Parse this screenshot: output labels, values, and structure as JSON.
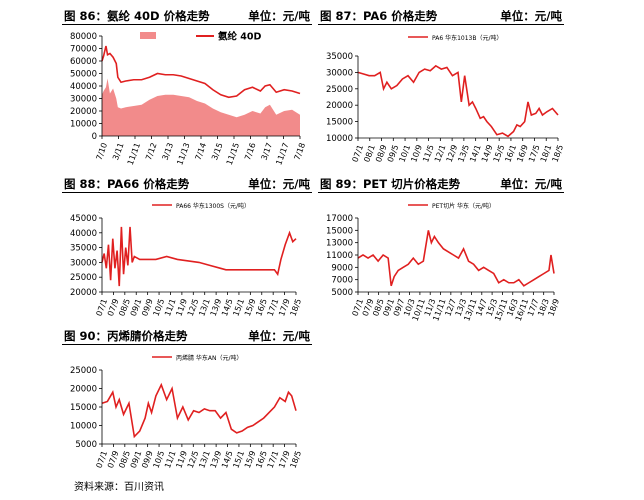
{
  "source": "资料来源：百川资讯",
  "colors": {
    "red": "#e02020",
    "pink": "#f28b8b",
    "axis": "#000000"
  },
  "chart_data": [
    {
      "id": "c86",
      "type": "area",
      "title": "图 86：氨纶 40D 价格走势",
      "unit": "单位：元/吨",
      "ylim": [
        0,
        80000
      ],
      "yticks": [
        0,
        10000,
        20000,
        30000,
        40000,
        50000,
        60000,
        70000,
        80000
      ],
      "xticks": [
        "7/10",
        "3/11",
        "11/11",
        "7/12",
        "3/13",
        "11/13",
        "7/14",
        "3/15",
        "11/15",
        "7/16",
        "3/17",
        "11/17",
        "7/18"
      ],
      "legend": [
        "价差",
        "氨纶 40D"
      ],
      "x": [
        0,
        1,
        2,
        3,
        4,
        5,
        6,
        7,
        8,
        9,
        10,
        11,
        12
      ],
      "series": [
        {
          "name": "价差",
          "kind": "area",
          "x": [
            0,
            0.1,
            0.25,
            0.35,
            0.5,
            0.7,
            0.9,
            1,
            1.2,
            1.5,
            2,
            2.5,
            3,
            3.5,
            4,
            4.5,
            5,
            5.5,
            6,
            6.5,
            7,
            7.5,
            8,
            8.5,
            9,
            9.5,
            10,
            10.3,
            10.6,
            11,
            11.5,
            12,
            12.5
          ],
          "values": [
            33000,
            36000,
            39000,
            46000,
            34000,
            38000,
            30000,
            23000,
            22000,
            23000,
            24000,
            25000,
            29000,
            32000,
            33000,
            33000,
            32000,
            31000,
            28000,
            26000,
            22000,
            19000,
            17000,
            15000,
            17000,
            20000,
            18000,
            23000,
            25000,
            17000,
            20000,
            21000,
            17000
          ]
        },
        {
          "name": "氨纶 40D",
          "kind": "line",
          "x": [
            0,
            0.1,
            0.25,
            0.35,
            0.5,
            0.7,
            0.9,
            1,
            1.2,
            1.5,
            2,
            2.5,
            3,
            3.5,
            4,
            4.5,
            5,
            5.5,
            6,
            6.5,
            7,
            7.5,
            8,
            8.5,
            9,
            9.5,
            10,
            10.3,
            10.6,
            11,
            11.5,
            12,
            12.5
          ],
          "values": [
            60000,
            64000,
            72000,
            65000,
            66000,
            63000,
            58000,
            47000,
            43000,
            44000,
            45000,
            45000,
            47000,
            50000,
            49000,
            49000,
            48000,
            46000,
            44000,
            42000,
            37000,
            33000,
            31000,
            32000,
            37000,
            39000,
            36000,
            40000,
            41000,
            35000,
            37000,
            36000,
            34000
          ]
        }
      ]
    },
    {
      "id": "c87",
      "type": "line",
      "title": "图 87：PA6 价格走势",
      "unit": "单位：元/吨",
      "ylim": [
        10000,
        35000
      ],
      "yticks": [
        10000,
        15000,
        20000,
        25000,
        30000,
        35000
      ],
      "xticks": [
        "07/1",
        "08/1",
        "08/9",
        "09/5",
        "10/1",
        "10/9",
        "11/5",
        "12/1",
        "12/9",
        "13/5",
        "14/1",
        "14/9",
        "15/5",
        "16/1",
        "16/9",
        "17/5",
        "18/1",
        "18/5"
      ],
      "legend": [
        "PA6 华东1013B（元/吨）"
      ],
      "series": [
        {
          "name": "PA6 华东1013B（元/吨）",
          "x": [
            0,
            0.5,
            1,
            1.5,
            2,
            2.3,
            2.6,
            3,
            3.5,
            4,
            4.5,
            5,
            5.5,
            6,
            6.5,
            7,
            7.5,
            8,
            8.5,
            9,
            9.3,
            9.6,
            10,
            10.3,
            10.6,
            11,
            11.3,
            11.6,
            12,
            12.5,
            13,
            13.5,
            14,
            14.3,
            14.6,
            15,
            15.3,
            15.6,
            16,
            16.3,
            16.6,
            17,
            17.5,
            18
          ],
          "values": [
            30000,
            29500,
            29000,
            29000,
            30000,
            25000,
            27000,
            25000,
            26000,
            28000,
            29000,
            27000,
            30000,
            31000,
            30500,
            32000,
            31000,
            31500,
            29000,
            30000,
            21000,
            29000,
            20000,
            21000,
            19000,
            16000,
            16500,
            15000,
            13500,
            11000,
            11500,
            10500,
            12000,
            14000,
            13500,
            15000,
            21000,
            17000,
            17500,
            19000,
            17000,
            18000,
            19000,
            17000
          ]
        }
      ]
    },
    {
      "id": "c88",
      "type": "line",
      "title": "图 88：PA66 价格走势",
      "unit": "单位：元/吨",
      "ylim": [
        20000,
        45000
      ],
      "yticks": [
        20000,
        25000,
        30000,
        35000,
        40000,
        45000
      ],
      "xticks": [
        "07/1",
        "07/9",
        "08/5",
        "09/1",
        "09/9",
        "10/5",
        "11/1",
        "11/9",
        "12/5",
        "13/1",
        "13/9",
        "14/5",
        "15/1",
        "15/9",
        "16/5",
        "17/1",
        "17/9",
        "18/5"
      ],
      "legend": [
        "PA66 华东1300S（元/吨）"
      ],
      "series": [
        {
          "name": "PA66 华东1300S（元/吨）",
          "x": [
            0,
            0.2,
            0.4,
            0.6,
            0.8,
            1,
            1.2,
            1.4,
            1.6,
            1.8,
            2,
            2.2,
            2.4,
            2.6,
            2.8,
            3,
            3.5,
            4,
            5,
            6,
            7,
            8,
            9,
            10,
            11,
            11.5,
            12,
            13,
            14,
            15,
            15.5,
            16,
            16.3,
            16.6,
            17,
            17.4,
            17.7,
            18
          ],
          "values": [
            30000,
            33000,
            28000,
            36000,
            24000,
            38000,
            28000,
            34000,
            22000,
            42000,
            26000,
            35000,
            29000,
            42000,
            30000,
            32000,
            31000,
            31000,
            31000,
            32000,
            31000,
            30500,
            30000,
            29000,
            28000,
            27500,
            27500,
            27500,
            27500,
            27500,
            27500,
            27500,
            26000,
            31000,
            36000,
            40000,
            37000,
            38000
          ]
        }
      ]
    },
    {
      "id": "c89",
      "type": "line",
      "title": "图 89：PET 切片价格走势",
      "unit": "单位：元/吨",
      "ylim": [
        5000,
        17000
      ],
      "yticks": [
        5000,
        7000,
        9000,
        11000,
        13000,
        15000,
        17000
      ],
      "xticks": [
        "07/1",
        "07/9",
        "08/5",
        "09/1",
        "09/7",
        "10/3",
        "10/11",
        "11/3",
        "11/11",
        "12/7",
        "13/3",
        "13/11",
        "14/7",
        "15/3",
        "15/11",
        "16/3",
        "16/11",
        "17/7",
        "18/3",
        "18/9"
      ],
      "legend": [
        "PET切片 华东（元/吨）"
      ],
      "series": [
        {
          "name": "PET切片 华东（元/吨）",
          "x": [
            0,
            0.5,
            1,
            1.5,
            2,
            2.5,
            3,
            3.3,
            3.6,
            4,
            4.5,
            5,
            5.5,
            6,
            6.5,
            7,
            7.3,
            7.6,
            8,
            8.5,
            9,
            9.5,
            10,
            10.5,
            11,
            11.5,
            12,
            12.5,
            13,
            13.5,
            14,
            14.5,
            15,
            15.5,
            16,
            16.5,
            17,
            17.5,
            18,
            18.5,
            19,
            19.2,
            19.5
          ],
          "values": [
            10500,
            11000,
            10500,
            11000,
            10000,
            11000,
            10500,
            6000,
            7500,
            8500,
            9000,
            9500,
            10500,
            9500,
            10000,
            15000,
            13000,
            14000,
            13000,
            12000,
            11500,
            11000,
            10500,
            12000,
            10000,
            9500,
            8500,
            9000,
            8500,
            8000,
            6500,
            7000,
            6500,
            6500,
            7000,
            6000,
            6500,
            7000,
            7500,
            8000,
            8500,
            11000,
            8000
          ]
        }
      ]
    },
    {
      "id": "c90",
      "type": "line",
      "title": "图 90：丙烯腈价格走势",
      "unit": "单位：元/吨",
      "ylim": [
        5000,
        25000
      ],
      "yticks": [
        5000,
        10000,
        15000,
        20000,
        25000
      ],
      "xticks": [
        "07/1",
        "07/9",
        "08/5",
        "09/1",
        "09/9",
        "10/5",
        "11/1",
        "11/9",
        "12/5",
        "13/1",
        "13/9",
        "14/5",
        "15/1",
        "15/9",
        "16/5",
        "17/1",
        "17/9",
        "18/5"
      ],
      "legend": [
        "丙烯腈 华东AN（元/吨）"
      ],
      "series": [
        {
          "name": "丙烯腈 华东AN（元/吨）",
          "x": [
            0,
            0.5,
            1,
            1.3,
            1.6,
            2,
            2.5,
            3,
            3.5,
            4,
            4.3,
            4.6,
            5,
            5.5,
            6,
            6.5,
            7,
            7.5,
            8,
            8.5,
            9,
            9.5,
            10,
            10.5,
            11,
            11.5,
            12,
            12.5,
            13,
            13.5,
            14,
            14.5,
            15,
            15.5,
            16,
            16.5,
            17,
            17.3,
            17.6,
            18
          ],
          "values": [
            16000,
            16500,
            19000,
            15000,
            17000,
            13000,
            16000,
            7000,
            8500,
            12000,
            16000,
            13500,
            18000,
            21000,
            17000,
            20000,
            12000,
            15000,
            11500,
            14000,
            13500,
            14500,
            14000,
            14000,
            12000,
            13500,
            9000,
            8000,
            8500,
            9500,
            10000,
            11000,
            12000,
            13500,
            15000,
            17500,
            16500,
            19000,
            18000,
            14000
          ]
        }
      ]
    }
  ]
}
